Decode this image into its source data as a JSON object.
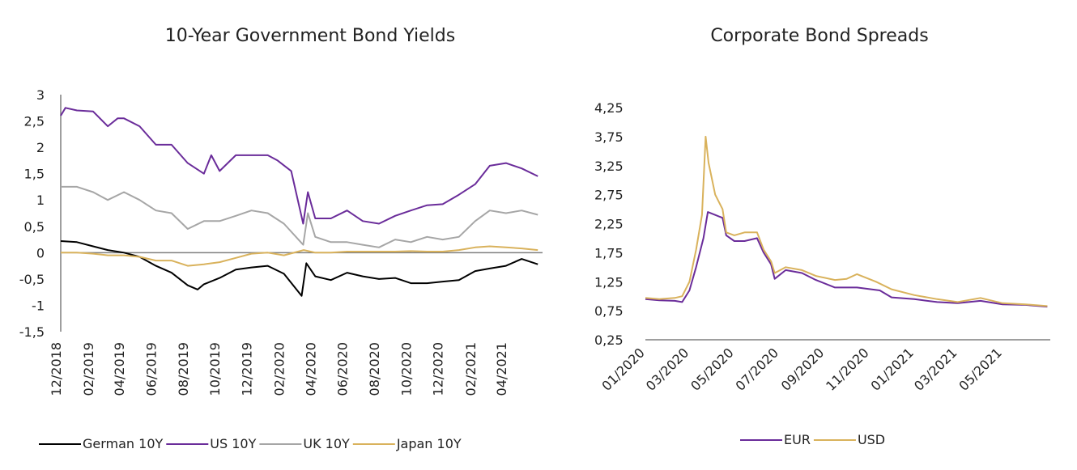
{
  "chart_data": [
    {
      "type": "line",
      "title": "10-Year Government Bond Yields",
      "xlabel": "",
      "ylabel": "",
      "ylim": [
        -1.5,
        3
      ],
      "y_ticks": [
        "3",
        "2,5",
        "2",
        "1,5",
        "1",
        "0,5",
        "0",
        "-0,5",
        "-1",
        "-1,5"
      ],
      "x_ticks": [
        "12/2018",
        "02/2019",
        "04/2019",
        "06/2019",
        "08/2019",
        "10/2019",
        "12/2019",
        "02/2020",
        "04/2020",
        "06/2020",
        "08/2020",
        "10/2020",
        "12/2020",
        "02/2021",
        "04/2021"
      ],
      "xlim": [
        "2018-12-01",
        "2021-06-10"
      ],
      "grid": false,
      "legend_position": "bottom",
      "series": [
        {
          "name": "German 10Y",
          "color": "#000000",
          "points": [
            [
              "2018-12-01",
              0.22
            ],
            [
              "2019-01-01",
              0.2
            ],
            [
              "2019-02-01",
              0.12
            ],
            [
              "2019-03-01",
              0.05
            ],
            [
              "2019-04-01",
              0.0
            ],
            [
              "2019-05-01",
              -0.08
            ],
            [
              "2019-06-01",
              -0.25
            ],
            [
              "2019-07-01",
              -0.38
            ],
            [
              "2019-08-01",
              -0.62
            ],
            [
              "2019-08-20",
              -0.7
            ],
            [
              "2019-09-01",
              -0.6
            ],
            [
              "2019-10-01",
              -0.48
            ],
            [
              "2019-11-01",
              -0.32
            ],
            [
              "2019-12-01",
              -0.28
            ],
            [
              "2020-01-01",
              -0.25
            ],
            [
              "2020-02-01",
              -0.4
            ],
            [
              "2020-03-06",
              -0.82
            ],
            [
              "2020-03-15",
              -0.2
            ],
            [
              "2020-04-01",
              -0.45
            ],
            [
              "2020-05-01",
              -0.52
            ],
            [
              "2020-06-01",
              -0.38
            ],
            [
              "2020-07-01",
              -0.45
            ],
            [
              "2020-08-01",
              -0.5
            ],
            [
              "2020-09-01",
              -0.48
            ],
            [
              "2020-10-01",
              -0.58
            ],
            [
              "2020-11-01",
              -0.58
            ],
            [
              "2020-12-01",
              -0.55
            ],
            [
              "2021-01-01",
              -0.52
            ],
            [
              "2021-02-01",
              -0.35
            ],
            [
              "2021-03-01",
              -0.3
            ],
            [
              "2021-04-01",
              -0.25
            ],
            [
              "2021-05-01",
              -0.12
            ],
            [
              "2021-06-01",
              -0.22
            ]
          ]
        },
        {
          "name": "US 10Y",
          "color": "#6a2c9a",
          "points": [
            [
              "2018-12-01",
              2.6
            ],
            [
              "2018-12-10",
              2.75
            ],
            [
              "2019-01-01",
              2.7
            ],
            [
              "2019-02-01",
              2.68
            ],
            [
              "2019-03-01",
              2.4
            ],
            [
              "2019-03-20",
              2.55
            ],
            [
              "2019-04-01",
              2.55
            ],
            [
              "2019-05-01",
              2.4
            ],
            [
              "2019-06-01",
              2.05
            ],
            [
              "2019-07-01",
              2.05
            ],
            [
              "2019-08-01",
              1.7
            ],
            [
              "2019-09-01",
              1.5
            ],
            [
              "2019-09-15",
              1.85
            ],
            [
              "2019-10-01",
              1.55
            ],
            [
              "2019-11-01",
              1.85
            ],
            [
              "2019-12-01",
              1.85
            ],
            [
              "2020-01-01",
              1.85
            ],
            [
              "2020-01-20",
              1.75
            ],
            [
              "2020-02-15",
              1.55
            ],
            [
              "2020-03-09",
              0.55
            ],
            [
              "2020-03-18",
              1.15
            ],
            [
              "2020-04-01",
              0.65
            ],
            [
              "2020-05-01",
              0.65
            ],
            [
              "2020-06-01",
              0.8
            ],
            [
              "2020-07-01",
              0.6
            ],
            [
              "2020-08-01",
              0.55
            ],
            [
              "2020-09-01",
              0.7
            ],
            [
              "2020-10-01",
              0.8
            ],
            [
              "2020-11-01",
              0.9
            ],
            [
              "2020-12-01",
              0.92
            ],
            [
              "2021-01-01",
              1.1
            ],
            [
              "2021-02-01",
              1.3
            ],
            [
              "2021-03-01",
              1.65
            ],
            [
              "2021-04-01",
              1.7
            ],
            [
              "2021-05-01",
              1.6
            ],
            [
              "2021-06-01",
              1.45
            ]
          ]
        },
        {
          "name": "UK 10Y",
          "color": "#a6a6a6",
          "points": [
            [
              "2018-12-01",
              1.25
            ],
            [
              "2019-01-01",
              1.25
            ],
            [
              "2019-02-01",
              1.15
            ],
            [
              "2019-03-01",
              1.0
            ],
            [
              "2019-04-01",
              1.15
            ],
            [
              "2019-05-01",
              1.0
            ],
            [
              "2019-06-01",
              0.8
            ],
            [
              "2019-07-01",
              0.75
            ],
            [
              "2019-08-01",
              0.45
            ],
            [
              "2019-09-01",
              0.6
            ],
            [
              "2019-10-01",
              0.6
            ],
            [
              "2019-11-01",
              0.7
            ],
            [
              "2019-12-01",
              0.8
            ],
            [
              "2020-01-01",
              0.75
            ],
            [
              "2020-02-01",
              0.55
            ],
            [
              "2020-03-09",
              0.15
            ],
            [
              "2020-03-18",
              0.75
            ],
            [
              "2020-04-01",
              0.3
            ],
            [
              "2020-05-01",
              0.2
            ],
            [
              "2020-06-01",
              0.2
            ],
            [
              "2020-07-01",
              0.15
            ],
            [
              "2020-08-01",
              0.1
            ],
            [
              "2020-09-01",
              0.25
            ],
            [
              "2020-10-01",
              0.2
            ],
            [
              "2020-11-01",
              0.3
            ],
            [
              "2020-12-01",
              0.25
            ],
            [
              "2021-01-01",
              0.3
            ],
            [
              "2021-02-01",
              0.6
            ],
            [
              "2021-03-01",
              0.8
            ],
            [
              "2021-04-01",
              0.75
            ],
            [
              "2021-05-01",
              0.8
            ],
            [
              "2021-06-01",
              0.72
            ]
          ]
        },
        {
          "name": "Japan 10Y",
          "color": "#d9b25c",
          "points": [
            [
              "2018-12-01",
              0.0
            ],
            [
              "2019-01-01",
              0.0
            ],
            [
              "2019-02-01",
              -0.02
            ],
            [
              "2019-03-01",
              -0.05
            ],
            [
              "2019-04-01",
              -0.05
            ],
            [
              "2019-05-01",
              -0.08
            ],
            [
              "2019-06-01",
              -0.15
            ],
            [
              "2019-07-01",
              -0.15
            ],
            [
              "2019-08-01",
              -0.25
            ],
            [
              "2019-09-01",
              -0.22
            ],
            [
              "2019-10-01",
              -0.18
            ],
            [
              "2019-11-01",
              -0.1
            ],
            [
              "2019-12-01",
              -0.02
            ],
            [
              "2020-01-01",
              0.0
            ],
            [
              "2020-02-01",
              -0.05
            ],
            [
              "2020-03-10",
              0.05
            ],
            [
              "2020-04-01",
              0.0
            ],
            [
              "2020-05-01",
              0.0
            ],
            [
              "2020-06-01",
              0.02
            ],
            [
              "2020-07-01",
              0.02
            ],
            [
              "2020-08-01",
              0.02
            ],
            [
              "2020-09-01",
              0.02
            ],
            [
              "2020-10-01",
              0.03
            ],
            [
              "2020-11-01",
              0.02
            ],
            [
              "2020-12-01",
              0.02
            ],
            [
              "2021-01-01",
              0.05
            ],
            [
              "2021-02-01",
              0.1
            ],
            [
              "2021-03-01",
              0.12
            ],
            [
              "2021-04-01",
              0.1
            ],
            [
              "2021-05-01",
              0.08
            ],
            [
              "2021-06-01",
              0.05
            ]
          ]
        }
      ]
    },
    {
      "type": "line",
      "title": "Corporate Bond Spreads",
      "xlabel": "",
      "ylabel": "",
      "ylim": [
        0.25,
        4.25
      ],
      "y_ticks": [
        "4,25",
        "3,75",
        "3,25",
        "2,75",
        "2,25",
        "1,75",
        "1,25",
        "0,75",
        "0,25"
      ],
      "x_ticks": [
        "01/2020",
        "03/2020",
        "05/2020",
        "07/2020",
        "09/2020",
        "11/2020",
        "01/2021",
        "03/2021",
        "05/2021"
      ],
      "xlim": [
        "2020-01-01",
        "2021-07-05"
      ],
      "grid": false,
      "legend_position": "bottom",
      "series": [
        {
          "name": "EUR",
          "color": "#6a2c9a",
          "points": [
            [
              "2020-01-01",
              0.95
            ],
            [
              "2020-01-20",
              0.93
            ],
            [
              "2020-02-10",
              0.92
            ],
            [
              "2020-02-20",
              0.9
            ],
            [
              "2020-03-01",
              1.1
            ],
            [
              "2020-03-10",
              1.5
            ],
            [
              "2020-03-20",
              2.0
            ],
            [
              "2020-03-26",
              2.45
            ],
            [
              "2020-04-05",
              2.4
            ],
            [
              "2020-04-15",
              2.35
            ],
            [
              "2020-04-20",
              2.05
            ],
            [
              "2020-05-01",
              1.95
            ],
            [
              "2020-05-15",
              1.95
            ],
            [
              "2020-06-01",
              2.0
            ],
            [
              "2020-06-10",
              1.75
            ],
            [
              "2020-06-20",
              1.55
            ],
            [
              "2020-06-25",
              1.3
            ],
            [
              "2020-07-10",
              1.45
            ],
            [
              "2020-08-01",
              1.4
            ],
            [
              "2020-08-20",
              1.28
            ],
            [
              "2020-09-15",
              1.15
            ],
            [
              "2020-10-15",
              1.15
            ],
            [
              "2020-11-15",
              1.1
            ],
            [
              "2020-12-01",
              0.98
            ],
            [
              "2021-01-01",
              0.95
            ],
            [
              "2021-02-01",
              0.9
            ],
            [
              "2021-03-01",
              0.88
            ],
            [
              "2021-04-01",
              0.92
            ],
            [
              "2021-05-01",
              0.86
            ],
            [
              "2021-06-01",
              0.85
            ],
            [
              "2021-07-01",
              0.82
            ]
          ]
        },
        {
          "name": "USD",
          "color": "#d9b25c",
          "points": [
            [
              "2020-01-01",
              0.97
            ],
            [
              "2020-01-20",
              0.95
            ],
            [
              "2020-02-10",
              0.97
            ],
            [
              "2020-02-20",
              1.0
            ],
            [
              "2020-03-01",
              1.25
            ],
            [
              "2020-03-10",
              1.8
            ],
            [
              "2020-03-18",
              2.4
            ],
            [
              "2020-03-23",
              3.75
            ],
            [
              "2020-03-27",
              3.3
            ],
            [
              "2020-04-05",
              2.75
            ],
            [
              "2020-04-15",
              2.5
            ],
            [
              "2020-04-20",
              2.1
            ],
            [
              "2020-05-01",
              2.05
            ],
            [
              "2020-05-15",
              2.1
            ],
            [
              "2020-06-01",
              2.1
            ],
            [
              "2020-06-10",
              1.8
            ],
            [
              "2020-06-20",
              1.6
            ],
            [
              "2020-06-25",
              1.4
            ],
            [
              "2020-07-10",
              1.5
            ],
            [
              "2020-08-01",
              1.45
            ],
            [
              "2020-08-20",
              1.35
            ],
            [
              "2020-09-15",
              1.28
            ],
            [
              "2020-10-01",
              1.3
            ],
            [
              "2020-10-15",
              1.38
            ],
            [
              "2020-11-10",
              1.25
            ],
            [
              "2020-12-01",
              1.12
            ],
            [
              "2021-01-01",
              1.02
            ],
            [
              "2021-02-01",
              0.95
            ],
            [
              "2021-03-01",
              0.9
            ],
            [
              "2021-04-01",
              0.97
            ],
            [
              "2021-05-01",
              0.88
            ],
            [
              "2021-06-01",
              0.86
            ],
            [
              "2021-07-01",
              0.83
            ]
          ]
        }
      ]
    }
  ]
}
